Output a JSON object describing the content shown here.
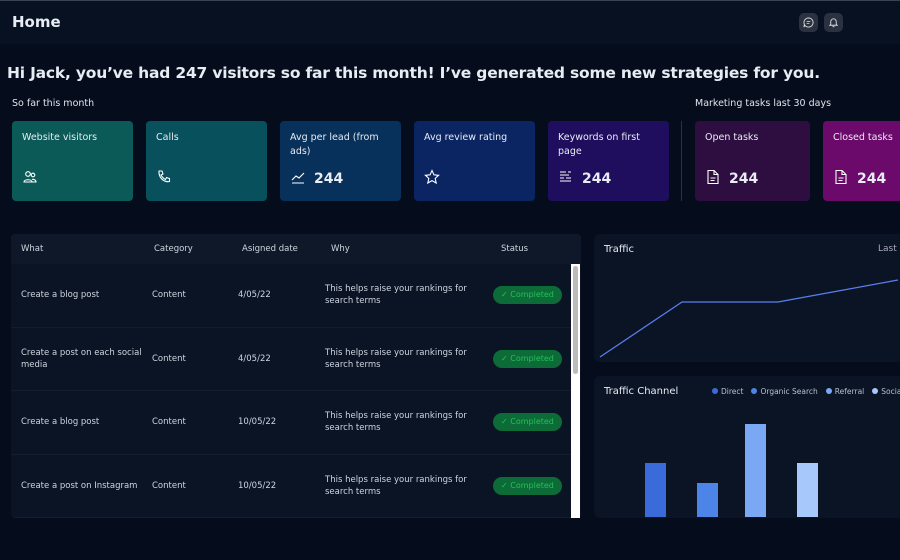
{
  "header": {
    "title": "Home",
    "icons": [
      "chat-icon",
      "bell-icon"
    ]
  },
  "headline": "Hi Jack, you’ve had 247 visitors so far this month! I’ve generated some new strategies for you.",
  "sections": {
    "month": "So far this month",
    "tasks": "Marketing tasks last 30 days"
  },
  "cards": [
    {
      "label": "Website visitors",
      "value": "",
      "icon": "users-icon",
      "color": "#0c5a57"
    },
    {
      "label": "Calls",
      "value": "",
      "icon": "phone-icon",
      "color": "#07505c"
    },
    {
      "label": "Avg per lead (from ads)",
      "value": "244",
      "icon": "trend-icon",
      "color": "#07305a"
    },
    {
      "label": "Avg review rating",
      "value": "",
      "icon": "star-icon",
      "color": "#0b2462"
    },
    {
      "label": "Keywords on first page",
      "value": "244",
      "icon": "list-icon",
      "color": "#1f0e5e"
    },
    {
      "label": "Open tasks",
      "value": "244",
      "icon": "document-icon",
      "color": "#2e0e40"
    },
    {
      "label": "Closed tasks",
      "value": "244",
      "icon": "document-icon",
      "color": "#6b0a6b"
    }
  ],
  "table": {
    "columns": [
      "What",
      "Category",
      "Asigned date",
      "Why",
      "Status"
    ],
    "rows": [
      {
        "what": "Create a blog post",
        "category": "Content",
        "date": "4/05/22",
        "why": "This helps raise your rankings for search terms",
        "status": "✓ Completed"
      },
      {
        "what": "Create a post on each social media",
        "category": "Content",
        "date": "4/05/22",
        "why": "This helps raise your rankings for search terms",
        "status": "✓ Completed"
      },
      {
        "what": "Create a blog post",
        "category": "Content",
        "date": "10/05/22",
        "why": "This helps raise your rankings for search terms",
        "status": "✓ Completed"
      },
      {
        "what": "Create a post on Instagram",
        "category": "Content",
        "date": "10/05/22",
        "why": "This helps raise your rankings for search terms",
        "status": "✓ Completed"
      }
    ]
  },
  "traffic": {
    "title": "Traffic",
    "range_label": "Last"
  },
  "channel": {
    "title": "Traffic Channel"
  },
  "chart_data": [
    {
      "type": "line",
      "title": "Traffic",
      "y": [
        0,
        55,
        55,
        77
      ],
      "ylim": [
        0,
        100
      ],
      "color": "#5b7ff0"
    },
    {
      "type": "bar",
      "title": "Traffic Channel",
      "legend_position": "top",
      "series": [
        {
          "name": "Direct",
          "value": 54,
          "color": "#3a6bd8"
        },
        {
          "name": "Organic Search",
          "value": 34,
          "color": "#4d84e8"
        },
        {
          "name": "Referral",
          "value": 93,
          "color": "#7aa8f5"
        },
        {
          "name": "Social",
          "value": 54,
          "color": "#a7c8fb"
        }
      ],
      "ylim": [
        0,
        100
      ]
    }
  ]
}
